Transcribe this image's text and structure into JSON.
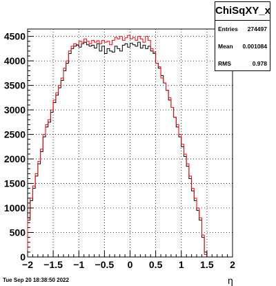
{
  "chart_data": {
    "type": "histogram",
    "title": "ChiSqXY_x",
    "xlabel": "η",
    "ylabel": "",
    "xlim": [
      -2,
      2
    ],
    "ylim": [
      0,
      4650
    ],
    "x_ticks": [
      "−2",
      "−1.5",
      "−1",
      "−0.5",
      "0",
      "0.5",
      "1",
      "1.5",
      "2"
    ],
    "y_ticks": [
      "0",
      "500",
      "1000",
      "1500",
      "2000",
      "2500",
      "3000",
      "3500",
      "4000",
      "4500"
    ],
    "grid": true,
    "bin_edges_start": -2.0,
    "bin_width": 0.05,
    "series": [
      {
        "color": "#000000",
        "values": [
          750,
          1150,
          1400,
          1650,
          1900,
          2150,
          2450,
          2650,
          2750,
          2950,
          3150,
          3300,
          3450,
          3600,
          3800,
          3950,
          4150,
          4250,
          4300,
          4320,
          4280,
          4350,
          4380,
          4330,
          4300,
          4320,
          4260,
          4350,
          4200,
          4300,
          4150,
          4250,
          4200,
          4180,
          4300,
          4250,
          4200,
          4320,
          4350,
          4280,
          4360,
          4330,
          4300,
          4380,
          4260,
          4320,
          4250,
          4300,
          4200,
          4150,
          3950,
          3850,
          3700,
          3550,
          3400,
          3200,
          3050,
          2850,
          2650,
          2450,
          2250,
          2050,
          1850,
          1600,
          1350,
          1150,
          950,
          750,
          400,
          100
        ]
      },
      {
        "color": "#ff0000",
        "values": [
          800,
          1200,
          1450,
          1700,
          1950,
          2200,
          2500,
          2700,
          2800,
          3000,
          3200,
          3350,
          3500,
          3650,
          3850,
          4000,
          4200,
          4300,
          4350,
          4330,
          4400,
          4380,
          4450,
          4400,
          4350,
          4420,
          4380,
          4410,
          4350,
          4420,
          4380,
          4400,
          4330,
          4420,
          4480,
          4450,
          4500,
          4420,
          4470,
          4520,
          4450,
          4480,
          4420,
          4500,
          4450,
          4380,
          4500,
          4420,
          4250,
          4180,
          3950,
          3880,
          3650,
          3550,
          3400,
          3250,
          3050,
          2850,
          2700,
          2500,
          2300,
          2100,
          1900,
          1650,
          1400,
          1200,
          1000,
          800,
          450,
          50
        ]
      }
    ]
  },
  "stats": {
    "title": "ChiSqXY_x",
    "entries_label": "Entries",
    "entries_value": "274497",
    "mean_label": "Mean",
    "mean_value": "0.001084",
    "rms_label": "RMS",
    "rms_value": "0.978"
  },
  "footer": {
    "timestamp": "Tue Sep 20 18:38:50 2022"
  }
}
